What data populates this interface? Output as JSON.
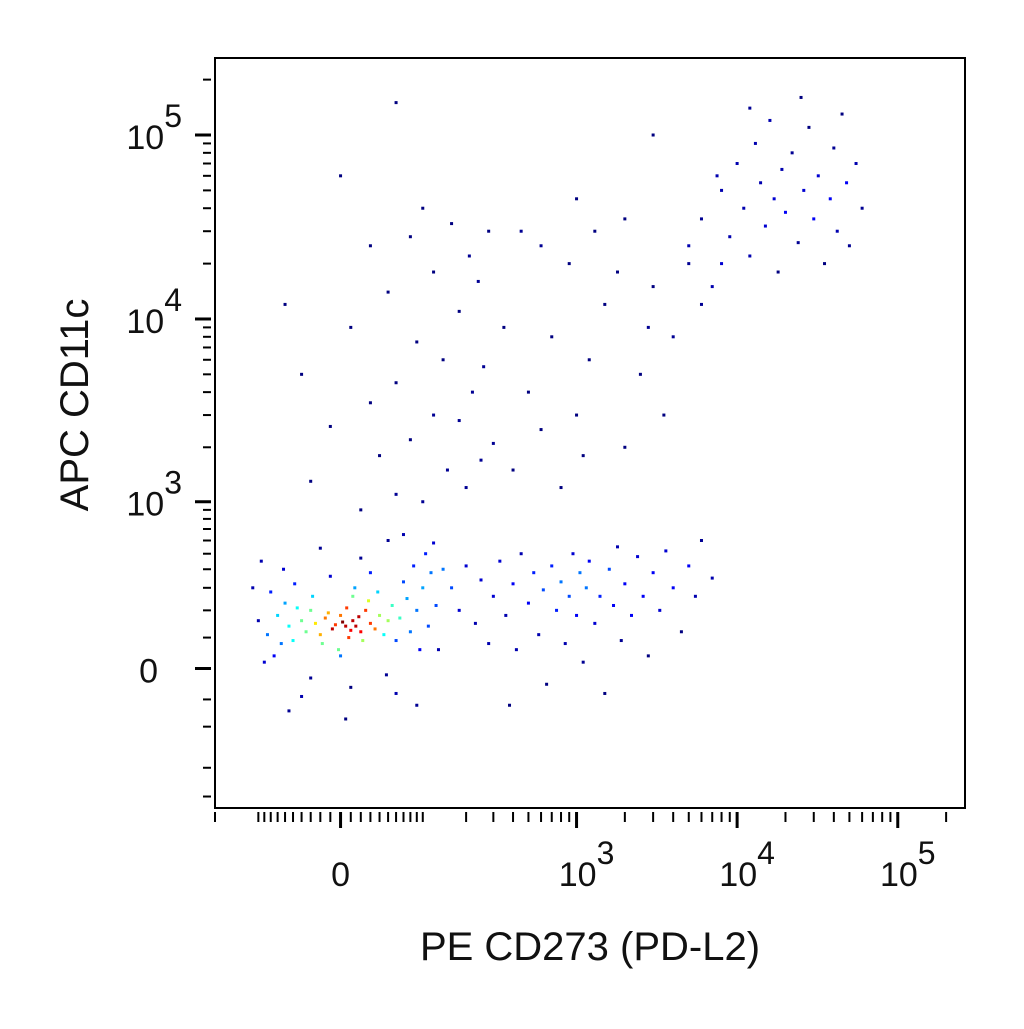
{
  "chart_data": {
    "type": "scatter",
    "x_label": "PE CD273 (PD-L2)",
    "y_label": "APC CD11c",
    "xscale": "biexponential",
    "yscale": "biexponential",
    "color": "#0000ff",
    "density_colored": true,
    "xlim": [
      -200,
      262144
    ],
    "ylim": [
      -700,
      262144
    ],
    "xticks": [
      0,
      {
        "value": 1000,
        "label": "10",
        "exponent": "3"
      },
      {
        "value": 10000,
        "label": "10",
        "exponent": "4"
      },
      {
        "value": 100000,
        "label": "10",
        "exponent": "5"
      }
    ],
    "yticks": [
      0,
      {
        "value": 1000,
        "label": "10",
        "exponent": "3"
      },
      {
        "value": 10000,
        "label": "10",
        "exponent": "4"
      },
      {
        "value": 100000,
        "label": "10",
        "exponent": "5"
      }
    ],
    "xminorticks": [
      -200,
      -100,
      -90,
      -80,
      -70,
      -60,
      -50,
      -40,
      -30,
      -20,
      -10,
      10,
      20,
      30,
      40,
      50,
      60,
      70,
      80,
      90,
      100,
      200,
      300,
      400,
      500,
      600,
      700,
      800,
      900,
      2000,
      3000,
      4000,
      5000,
      6000,
      7000,
      8000,
      9000,
      20000,
      30000,
      40000,
      50000,
      60000,
      70000,
      80000,
      90000,
      200000
    ],
    "yminorticks": [
      -600,
      -400,
      -200,
      -100,
      100,
      200,
      300,
      400,
      500,
      600,
      700,
      800,
      900,
      2000,
      3000,
      4000,
      5000,
      6000,
      7000,
      8000,
      9000,
      20000,
      30000,
      40000,
      50000,
      60000,
      70000,
      80000,
      90000,
      200000
    ],
    "x": [
      5,
      12,
      -8,
      20,
      0,
      30,
      -15,
      8,
      25,
      -20,
      15,
      2,
      -5,
      18,
      10,
      -12,
      35,
      -25,
      22,
      6,
      40,
      -30,
      45,
      -35,
      50,
      -40,
      28,
      -18,
      12,
      -2,
      55,
      -45,
      60,
      -50,
      38,
      -28,
      65,
      -55,
      14,
      0,
      75,
      -60,
      80,
      -65,
      70,
      -48,
      90,
      -70,
      30,
      -10,
      95,
      -75,
      48,
      -30,
      10,
      100,
      -80,
      110,
      -85,
      85,
      -62,
      20,
      115,
      -90,
      60,
      -40,
      125,
      -100,
      105,
      -20,
      50,
      130,
      -110,
      90,
      -55,
      5,
      140,
      -95,
      70,
      120,
      160,
      180,
      200,
      230,
      250,
      280,
      300,
      330,
      360,
      400,
      420,
      450,
      500,
      540,
      580,
      620,
      650,
      700,
      750,
      800,
      850,
      900,
      950,
      1000,
      1050,
      1100,
      1150,
      1200,
      1300,
      1400,
      1500,
      1600,
      1700,
      1800,
      1900,
      2000,
      2200,
      2400,
      2600,
      2800,
      3000,
      3300,
      3600,
      4000,
      4500,
      5000,
      5500,
      6000,
      7000,
      380,
      20,
      60,
      -30,
      100,
      150,
      40,
      200,
      80,
      -10,
      250,
      120,
      30,
      180,
      300,
      60,
      220,
      -40,
      140,
      90,
      260,
      10,
      180,
      50,
      120,
      210,
      80,
      160,
      30,
      240,
      -60,
      100,
      280,
      0,
      60,
      350,
      400,
      600,
      500,
      800,
      1000,
      700,
      1200,
      900,
      1500,
      600,
      2000,
      2500,
      1300,
      3000,
      4000,
      2000,
      5000,
      3500,
      6000,
      1800,
      450,
      1100,
      2800,
      8000,
      1000,
      5000,
      6000,
      7000,
      8000,
      9000,
      10000,
      11000,
      12000,
      13000,
      14000,
      15000,
      16000,
      17000,
      18000,
      19000,
      20000,
      22000,
      24000,
      26000,
      28000,
      30000,
      32000,
      35000,
      38000,
      40000,
      42000,
      45000,
      48000,
      50000,
      55000,
      60000,
      12000,
      25000,
      7500,
      3000
    ],
    "values": [
      140,
      160,
      130,
      120,
      180,
      150,
      170,
      100,
      200,
      110,
      140,
      155,
      145,
      175,
      125,
      190,
      130,
      150,
      90,
      210,
      180,
      200,
      110,
      120,
      160,
      160,
      240,
      80,
      260,
      60,
      220,
      210,
      90,
      90,
      280,
      260,
      170,
      140,
      300,
      40,
      250,
      230,
      120,
      80,
      330,
      320,
      200,
      180,
      380,
      360,
      60,
      40,
      -20,
      -30,
      -60,
      300,
      280,
      140,
      110,
      420,
      400,
      470,
      380,
      20,
      -80,
      -90,
      220,
      160,
      500,
      540,
      600,
      60,
      300,
      -120,
      -140,
      -170,
      400,
      450,
      650,
      580,
      300,
      200,
      420,
      150,
      340,
      80,
      260,
      450,
      180,
      320,
      60,
      500,
      230,
      380,
      110,
      290,
      -50,
      420,
      200,
      330,
      80,
      260,
      500,
      180,
      380,
      20,
      300,
      450,
      150,
      260,
      -80,
      400,
      220,
      550,
      90,
      320,
      180,
      480,
      260,
      40,
      380,
      200,
      520,
      300,
      120,
      420,
      260,
      600,
      350,
      -120,
      900,
      1100,
      1300,
      1000,
      1500,
      1800,
      1200,
      2200,
      2600,
      1700,
      3000,
      3500,
      2800,
      2100,
      4500,
      4000,
      5000,
      6000,
      7500,
      5500,
      9000,
      11000,
      14000,
      18000,
      22000,
      28000,
      33000,
      25000,
      16000,
      12000,
      40000,
      30000,
      60000,
      150000,
      9000,
      1500,
      2500,
      4000,
      1200,
      3000,
      8000,
      6000,
      20000,
      12000,
      25000,
      2000,
      5000,
      30000,
      15000,
      8000,
      35000,
      25000,
      3000,
      12000,
      18000,
      30000,
      1800,
      9000,
      20000,
      45000,
      20000,
      35000,
      15000,
      50000,
      28000,
      70000,
      40000,
      22000,
      90000,
      55000,
      32000,
      120000,
      45000,
      18000,
      65000,
      38000,
      80000,
      26000,
      50000,
      110000,
      35000,
      60000,
      20000,
      45000,
      85000,
      30000,
      130000,
      55000,
      25000,
      70000,
      40000,
      140000,
      160000,
      60000,
      100000
    ]
  }
}
